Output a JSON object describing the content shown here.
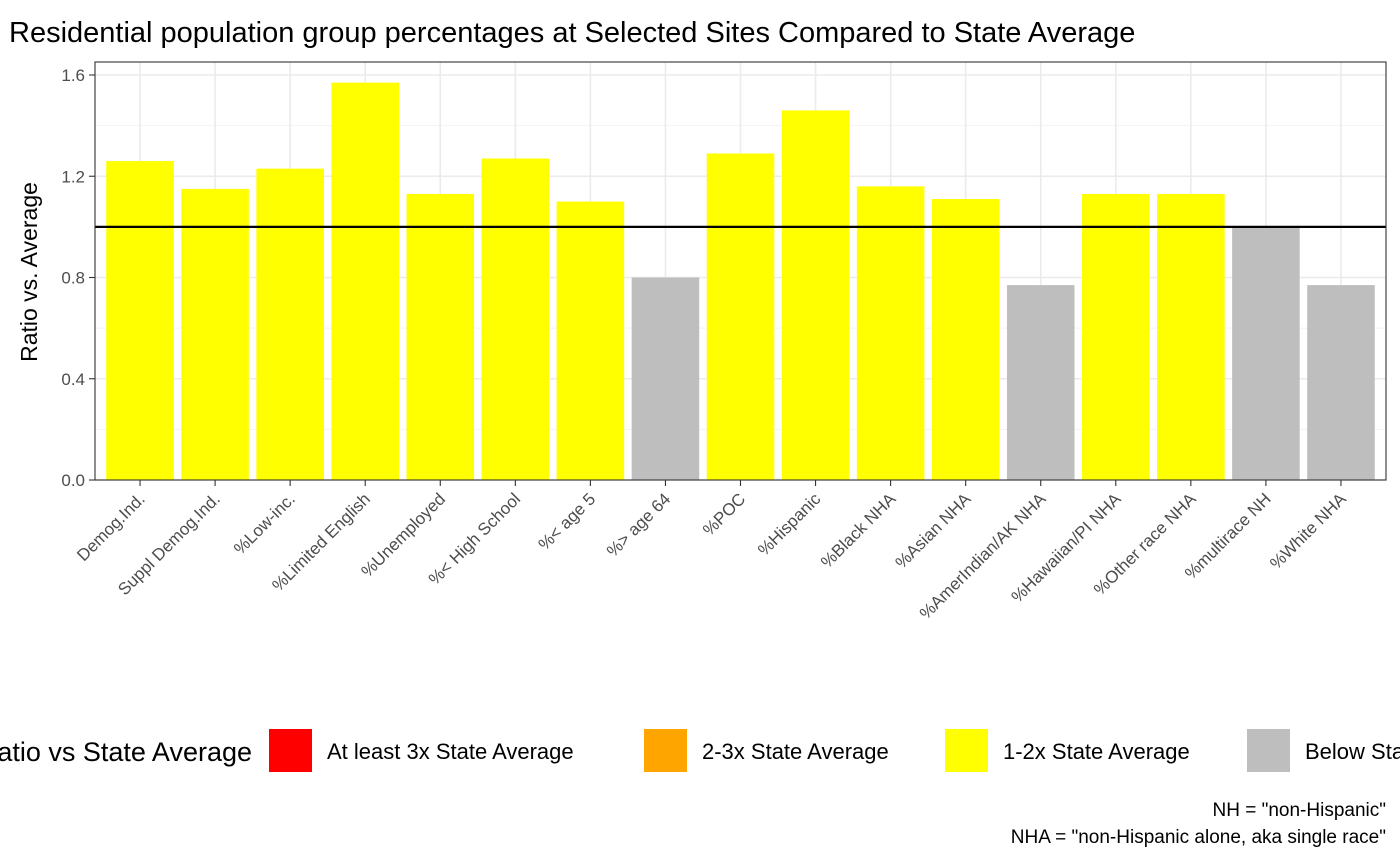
{
  "chart_data": {
    "type": "bar",
    "title": "Residential population group percentages at Selected Sites Compared to State Average",
    "xlabel": "",
    "ylabel": "Ratio vs. Average",
    "ylim": [
      0,
      1.6
    ],
    "yticks": [
      "0.0",
      "0.4",
      "0.8",
      "1.2",
      "1.6"
    ],
    "reference_line": 1.0,
    "grid": true,
    "categories": [
      "Demog.Ind.",
      "Suppl Demog.Ind.",
      "%Low-inc.",
      "%Limited English",
      "%Unemployed",
      "%< High School",
      "%< age 5",
      "%> age 64",
      "%POC",
      "%Hispanic",
      "%Black NHA",
      "%Asian NHA",
      "%AmerIndian/AK NHA",
      "%Hawaiian/PI NHA",
      "%Other race NHA",
      "%multirace NH",
      "%White NHA"
    ],
    "values": [
      1.26,
      1.15,
      1.23,
      1.57,
      1.13,
      1.27,
      1.1,
      0.8,
      1.29,
      1.46,
      1.16,
      1.11,
      0.77,
      1.13,
      1.13,
      1.0,
      0.77
    ],
    "bar_groups": [
      "1-2x State Average",
      "1-2x State Average",
      "1-2x State Average",
      "1-2x State Average",
      "1-2x State Average",
      "1-2x State Average",
      "1-2x State Average",
      "Below State Average",
      "1-2x State Average",
      "1-2x State Average",
      "1-2x State Average",
      "1-2x State Average",
      "Below State Average",
      "1-2x State Average",
      "1-2x State Average",
      "Below State Average",
      "Below State Average"
    ],
    "legend": {
      "title": "Ratio vs State Average",
      "placement": "bottom",
      "items": [
        {
          "label": "At least 3x State Average",
          "color": "#ff0000"
        },
        {
          "label": "2-3x State Average",
          "color": "#ffa500"
        },
        {
          "label": "1-2x State Average",
          "color": "#ffff00"
        },
        {
          "label": "Below State Average",
          "color": "#bebebe"
        }
      ]
    },
    "caption": [
      "NH = \"non-Hispanic\"",
      "NHA = \"non-Hispanic alone, aka single race\""
    ]
  }
}
